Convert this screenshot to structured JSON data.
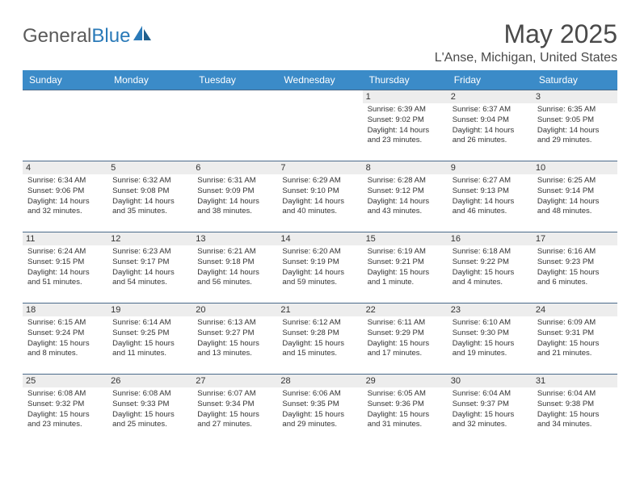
{
  "logo": {
    "text_a": "General",
    "text_b": "Blue"
  },
  "title": "May 2025",
  "subtitle": "L'Anse, Michigan, United States",
  "colors": {
    "header_bg": "#3b8bc8",
    "header_fg": "#ffffff",
    "cell_border": "#4a6a8a",
    "daynum_bg": "#ededed",
    "text": "#333333",
    "title": "#4a4a4a",
    "logo_gray": "#5a5a5a",
    "logo_blue": "#2a7ab8"
  },
  "day_headers": [
    "Sunday",
    "Monday",
    "Tuesday",
    "Wednesday",
    "Thursday",
    "Friday",
    "Saturday"
  ],
  "weeks": [
    [
      null,
      null,
      null,
      null,
      {
        "n": "1",
        "sr": "6:39 AM",
        "ss": "9:02 PM",
        "dl": "14 hours and 23 minutes."
      },
      {
        "n": "2",
        "sr": "6:37 AM",
        "ss": "9:04 PM",
        "dl": "14 hours and 26 minutes."
      },
      {
        "n": "3",
        "sr": "6:35 AM",
        "ss": "9:05 PM",
        "dl": "14 hours and 29 minutes."
      }
    ],
    [
      {
        "n": "4",
        "sr": "6:34 AM",
        "ss": "9:06 PM",
        "dl": "14 hours and 32 minutes."
      },
      {
        "n": "5",
        "sr": "6:32 AM",
        "ss": "9:08 PM",
        "dl": "14 hours and 35 minutes."
      },
      {
        "n": "6",
        "sr": "6:31 AM",
        "ss": "9:09 PM",
        "dl": "14 hours and 38 minutes."
      },
      {
        "n": "7",
        "sr": "6:29 AM",
        "ss": "9:10 PM",
        "dl": "14 hours and 40 minutes."
      },
      {
        "n": "8",
        "sr": "6:28 AM",
        "ss": "9:12 PM",
        "dl": "14 hours and 43 minutes."
      },
      {
        "n": "9",
        "sr": "6:27 AM",
        "ss": "9:13 PM",
        "dl": "14 hours and 46 minutes."
      },
      {
        "n": "10",
        "sr": "6:25 AM",
        "ss": "9:14 PM",
        "dl": "14 hours and 48 minutes."
      }
    ],
    [
      {
        "n": "11",
        "sr": "6:24 AM",
        "ss": "9:15 PM",
        "dl": "14 hours and 51 minutes."
      },
      {
        "n": "12",
        "sr": "6:23 AM",
        "ss": "9:17 PM",
        "dl": "14 hours and 54 minutes."
      },
      {
        "n": "13",
        "sr": "6:21 AM",
        "ss": "9:18 PM",
        "dl": "14 hours and 56 minutes."
      },
      {
        "n": "14",
        "sr": "6:20 AM",
        "ss": "9:19 PM",
        "dl": "14 hours and 59 minutes."
      },
      {
        "n": "15",
        "sr": "6:19 AM",
        "ss": "9:21 PM",
        "dl": "15 hours and 1 minute."
      },
      {
        "n": "16",
        "sr": "6:18 AM",
        "ss": "9:22 PM",
        "dl": "15 hours and 4 minutes."
      },
      {
        "n": "17",
        "sr": "6:16 AM",
        "ss": "9:23 PM",
        "dl": "15 hours and 6 minutes."
      }
    ],
    [
      {
        "n": "18",
        "sr": "6:15 AM",
        "ss": "9:24 PM",
        "dl": "15 hours and 8 minutes."
      },
      {
        "n": "19",
        "sr": "6:14 AM",
        "ss": "9:25 PM",
        "dl": "15 hours and 11 minutes."
      },
      {
        "n": "20",
        "sr": "6:13 AM",
        "ss": "9:27 PM",
        "dl": "15 hours and 13 minutes."
      },
      {
        "n": "21",
        "sr": "6:12 AM",
        "ss": "9:28 PM",
        "dl": "15 hours and 15 minutes."
      },
      {
        "n": "22",
        "sr": "6:11 AM",
        "ss": "9:29 PM",
        "dl": "15 hours and 17 minutes."
      },
      {
        "n": "23",
        "sr": "6:10 AM",
        "ss": "9:30 PM",
        "dl": "15 hours and 19 minutes."
      },
      {
        "n": "24",
        "sr": "6:09 AM",
        "ss": "9:31 PM",
        "dl": "15 hours and 21 minutes."
      }
    ],
    [
      {
        "n": "25",
        "sr": "6:08 AM",
        "ss": "9:32 PM",
        "dl": "15 hours and 23 minutes."
      },
      {
        "n": "26",
        "sr": "6:08 AM",
        "ss": "9:33 PM",
        "dl": "15 hours and 25 minutes."
      },
      {
        "n": "27",
        "sr": "6:07 AM",
        "ss": "9:34 PM",
        "dl": "15 hours and 27 minutes."
      },
      {
        "n": "28",
        "sr": "6:06 AM",
        "ss": "9:35 PM",
        "dl": "15 hours and 29 minutes."
      },
      {
        "n": "29",
        "sr": "6:05 AM",
        "ss": "9:36 PM",
        "dl": "15 hours and 31 minutes."
      },
      {
        "n": "30",
        "sr": "6:04 AM",
        "ss": "9:37 PM",
        "dl": "15 hours and 32 minutes."
      },
      {
        "n": "31",
        "sr": "6:04 AM",
        "ss": "9:38 PM",
        "dl": "15 hours and 34 minutes."
      }
    ]
  ],
  "labels": {
    "sunrise": "Sunrise:",
    "sunset": "Sunset:",
    "daylight": "Daylight:"
  }
}
